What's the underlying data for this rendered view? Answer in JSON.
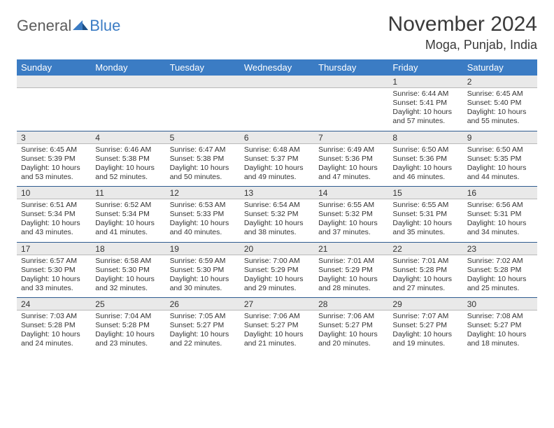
{
  "brand": {
    "part1": "General",
    "part2": "Blue"
  },
  "title": "November 2024",
  "location": "Moga, Punjab, India",
  "colors": {
    "header_bg": "#3b7cc4",
    "header_fg": "#ffffff",
    "numrow_bg": "#e9e9e9",
    "rule": "#2e5b8f",
    "text": "#333333"
  },
  "dow": [
    "Sunday",
    "Monday",
    "Tuesday",
    "Wednesday",
    "Thursday",
    "Friday",
    "Saturday"
  ],
  "weeks": [
    {
      "nums": [
        "",
        "",
        "",
        "",
        "",
        "1",
        "2"
      ],
      "cells": [
        null,
        null,
        null,
        null,
        null,
        {
          "sunrise": "6:44 AM",
          "sunset": "5:41 PM",
          "daylight": "10 hours and 57 minutes."
        },
        {
          "sunrise": "6:45 AM",
          "sunset": "5:40 PM",
          "daylight": "10 hours and 55 minutes."
        }
      ]
    },
    {
      "nums": [
        "3",
        "4",
        "5",
        "6",
        "7",
        "8",
        "9"
      ],
      "cells": [
        {
          "sunrise": "6:45 AM",
          "sunset": "5:39 PM",
          "daylight": "10 hours and 53 minutes."
        },
        {
          "sunrise": "6:46 AM",
          "sunset": "5:38 PM",
          "daylight": "10 hours and 52 minutes."
        },
        {
          "sunrise": "6:47 AM",
          "sunset": "5:38 PM",
          "daylight": "10 hours and 50 minutes."
        },
        {
          "sunrise": "6:48 AM",
          "sunset": "5:37 PM",
          "daylight": "10 hours and 49 minutes."
        },
        {
          "sunrise": "6:49 AM",
          "sunset": "5:36 PM",
          "daylight": "10 hours and 47 minutes."
        },
        {
          "sunrise": "6:50 AM",
          "sunset": "5:36 PM",
          "daylight": "10 hours and 46 minutes."
        },
        {
          "sunrise": "6:50 AM",
          "sunset": "5:35 PM",
          "daylight": "10 hours and 44 minutes."
        }
      ]
    },
    {
      "nums": [
        "10",
        "11",
        "12",
        "13",
        "14",
        "15",
        "16"
      ],
      "cells": [
        {
          "sunrise": "6:51 AM",
          "sunset": "5:34 PM",
          "daylight": "10 hours and 43 minutes."
        },
        {
          "sunrise": "6:52 AM",
          "sunset": "5:34 PM",
          "daylight": "10 hours and 41 minutes."
        },
        {
          "sunrise": "6:53 AM",
          "sunset": "5:33 PM",
          "daylight": "10 hours and 40 minutes."
        },
        {
          "sunrise": "6:54 AM",
          "sunset": "5:32 PM",
          "daylight": "10 hours and 38 minutes."
        },
        {
          "sunrise": "6:55 AM",
          "sunset": "5:32 PM",
          "daylight": "10 hours and 37 minutes."
        },
        {
          "sunrise": "6:55 AM",
          "sunset": "5:31 PM",
          "daylight": "10 hours and 35 minutes."
        },
        {
          "sunrise": "6:56 AM",
          "sunset": "5:31 PM",
          "daylight": "10 hours and 34 minutes."
        }
      ]
    },
    {
      "nums": [
        "17",
        "18",
        "19",
        "20",
        "21",
        "22",
        "23"
      ],
      "cells": [
        {
          "sunrise": "6:57 AM",
          "sunset": "5:30 PM",
          "daylight": "10 hours and 33 minutes."
        },
        {
          "sunrise": "6:58 AM",
          "sunset": "5:30 PM",
          "daylight": "10 hours and 32 minutes."
        },
        {
          "sunrise": "6:59 AM",
          "sunset": "5:30 PM",
          "daylight": "10 hours and 30 minutes."
        },
        {
          "sunrise": "7:00 AM",
          "sunset": "5:29 PM",
          "daylight": "10 hours and 29 minutes."
        },
        {
          "sunrise": "7:01 AM",
          "sunset": "5:29 PM",
          "daylight": "10 hours and 28 minutes."
        },
        {
          "sunrise": "7:01 AM",
          "sunset": "5:28 PM",
          "daylight": "10 hours and 27 minutes."
        },
        {
          "sunrise": "7:02 AM",
          "sunset": "5:28 PM",
          "daylight": "10 hours and 25 minutes."
        }
      ]
    },
    {
      "nums": [
        "24",
        "25",
        "26",
        "27",
        "28",
        "29",
        "30"
      ],
      "cells": [
        {
          "sunrise": "7:03 AM",
          "sunset": "5:28 PM",
          "daylight": "10 hours and 24 minutes."
        },
        {
          "sunrise": "7:04 AM",
          "sunset": "5:28 PM",
          "daylight": "10 hours and 23 minutes."
        },
        {
          "sunrise": "7:05 AM",
          "sunset": "5:27 PM",
          "daylight": "10 hours and 22 minutes."
        },
        {
          "sunrise": "7:06 AM",
          "sunset": "5:27 PM",
          "daylight": "10 hours and 21 minutes."
        },
        {
          "sunrise": "7:06 AM",
          "sunset": "5:27 PM",
          "daylight": "10 hours and 20 minutes."
        },
        {
          "sunrise": "7:07 AM",
          "sunset": "5:27 PM",
          "daylight": "10 hours and 19 minutes."
        },
        {
          "sunrise": "7:08 AM",
          "sunset": "5:27 PM",
          "daylight": "10 hours and 18 minutes."
        }
      ]
    }
  ],
  "labels": {
    "sunrise_prefix": "Sunrise: ",
    "sunset_prefix": "Sunset: ",
    "daylight_prefix": "Daylight: "
  }
}
